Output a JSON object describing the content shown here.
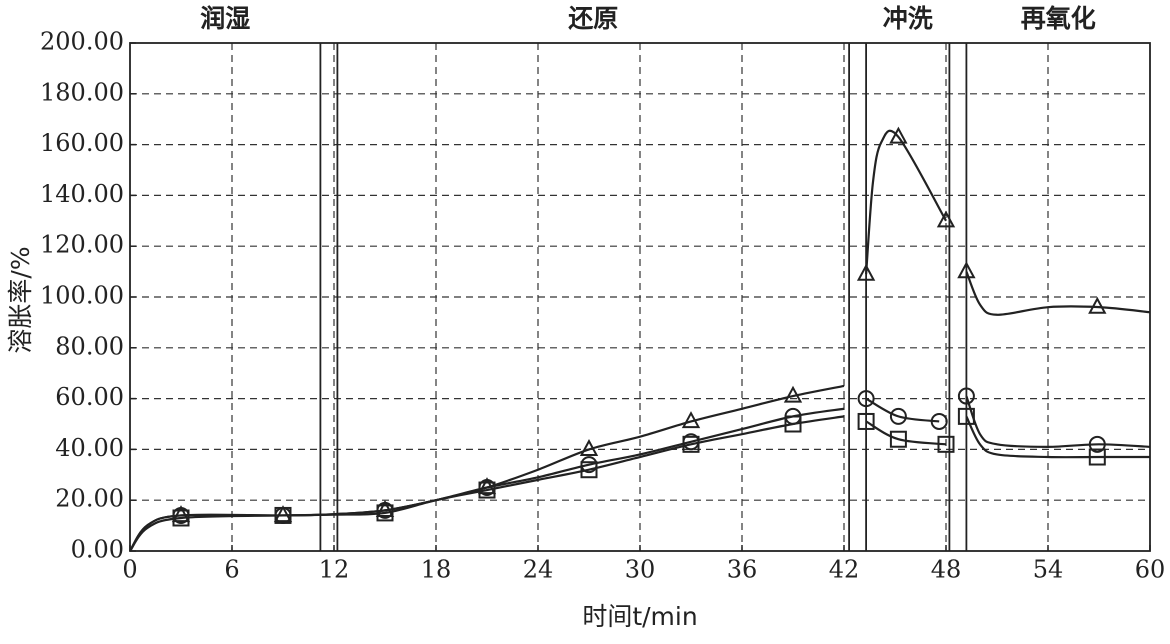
{
  "chart_data": {
    "type": "line",
    "xlabel": "时间t/min",
    "ylabel": "溶胀率/%",
    "phases": [
      "润湿",
      "还原",
      "冲洗",
      "再氧化"
    ],
    "phase_lines": [
      11.2,
      12.2,
      42.3,
      43.3,
      48.2,
      49.2
    ],
    "xlim": [
      0,
      60
    ],
    "xticks": [
      0,
      6,
      12,
      18,
      24,
      30,
      36,
      42,
      48,
      54,
      60
    ],
    "ylim": [
      0,
      200
    ],
    "yticks": [
      {
        "value": 0,
        "label": "0.00"
      },
      {
        "value": 20,
        "label": "20.00"
      },
      {
        "value": 40,
        "label": "40.00"
      },
      {
        "value": 60,
        "label": "60.00"
      },
      {
        "value": 80,
        "label": "80.00"
      },
      {
        "value": 100,
        "label": "100.00"
      },
      {
        "value": 120,
        "label": "120.00"
      },
      {
        "value": 140,
        "label": "140.00"
      },
      {
        "value": 160,
        "label": "160.00"
      },
      {
        "value": 180,
        "label": "180.00"
      },
      {
        "value": 200,
        "label": "200.00"
      }
    ],
    "grid": true,
    "series": [
      {
        "marker": "triangle",
        "color": "#222222",
        "x": [
          0,
          1,
          3,
          9,
          12,
          15,
          18,
          21,
          24,
          27,
          30,
          33,
          36,
          39,
          42,
          null,
          43.3,
          43.7,
          44.2,
          45.2,
          48.0,
          null,
          49.2,
          50,
          51,
          54,
          57,
          60
        ],
        "values": [
          0,
          10,
          14,
          14,
          14.5,
          16,
          20,
          25,
          32,
          40,
          45,
          51,
          56,
          61,
          65,
          null,
          109,
          145,
          161,
          163,
          130,
          null,
          110,
          97,
          93,
          96,
          96,
          94
        ],
        "markers_x": [
          3,
          9,
          15,
          21,
          27,
          33,
          39,
          43.3,
          45.2,
          48.0,
          49.2,
          56.9
        ],
        "markers_values": [
          14,
          14,
          16,
          25,
          40,
          51,
          61,
          109,
          163,
          130,
          110,
          96
        ]
      },
      {
        "marker": "circle",
        "color": "#222222",
        "x": [
          0,
          1,
          3,
          9,
          12,
          15,
          18,
          21,
          24,
          27,
          30,
          33,
          36,
          39,
          42,
          null,
          43.3,
          45.2,
          47.6,
          null,
          49.2,
          50,
          51,
          54,
          57,
          60
        ],
        "values": [
          0,
          10,
          14,
          14,
          14.5,
          16,
          20,
          25,
          29,
          34,
          38,
          43,
          48,
          53,
          56,
          null,
          60,
          53,
          51,
          null,
          61,
          46,
          42,
          41,
          42,
          41
        ],
        "markers_x": [
          3,
          9,
          15,
          21,
          27,
          33,
          39,
          43.3,
          45.2,
          47.6,
          49.2,
          56.9
        ],
        "markers_values": [
          14,
          14,
          16,
          25,
          34,
          43,
          53,
          60,
          53,
          51,
          61,
          42
        ]
      },
      {
        "marker": "square",
        "color": "#222222",
        "x": [
          0,
          1,
          3,
          9,
          12,
          15,
          18,
          21,
          24,
          27,
          30,
          33,
          36,
          39,
          42,
          null,
          43.3,
          45.2,
          48.0,
          null,
          49.2,
          50,
          51,
          54,
          57,
          60
        ],
        "values": [
          0,
          9,
          13,
          14,
          14.3,
          15,
          20,
          24,
          28,
          32,
          37,
          42,
          46,
          50,
          53,
          null,
          51,
          44,
          42,
          null,
          53,
          42,
          38,
          37,
          37,
          37
        ],
        "markers_x": [
          3,
          9,
          15,
          21,
          27,
          33,
          39,
          43.3,
          45.2,
          48.0,
          49.2,
          56.9
        ],
        "markers_values": [
          13,
          14,
          15,
          24,
          32,
          42,
          50,
          51,
          44,
          42,
          53,
          37
        ]
      }
    ]
  }
}
